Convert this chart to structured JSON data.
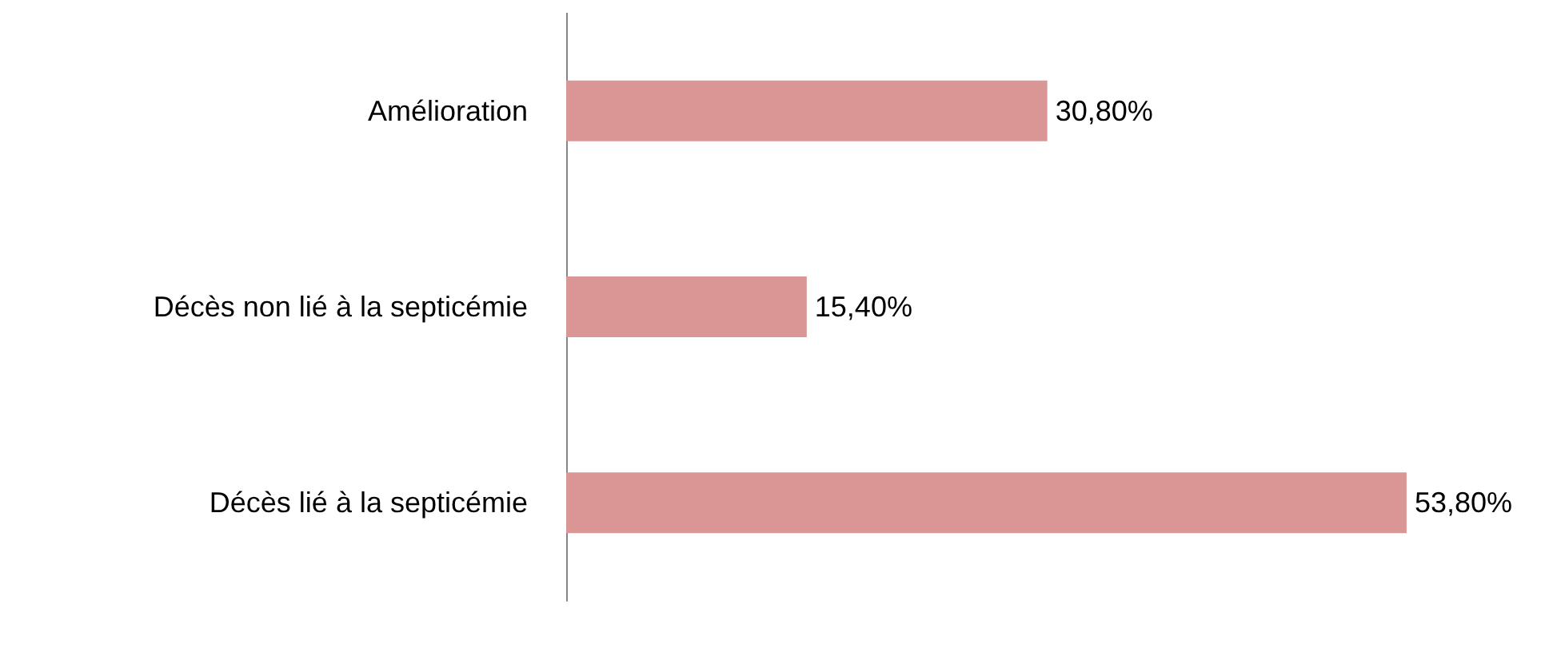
{
  "chart_data": {
    "type": "bar",
    "orientation": "horizontal",
    "categories": [
      "Amélioration",
      "Décès non lié à la septicémie",
      "Décès lié à la septicémie"
    ],
    "values": [
      30.8,
      15.4,
      53.8
    ],
    "value_labels": [
      "30,80%",
      "15,40%",
      "53,80%"
    ],
    "color": "#d99694"
  }
}
